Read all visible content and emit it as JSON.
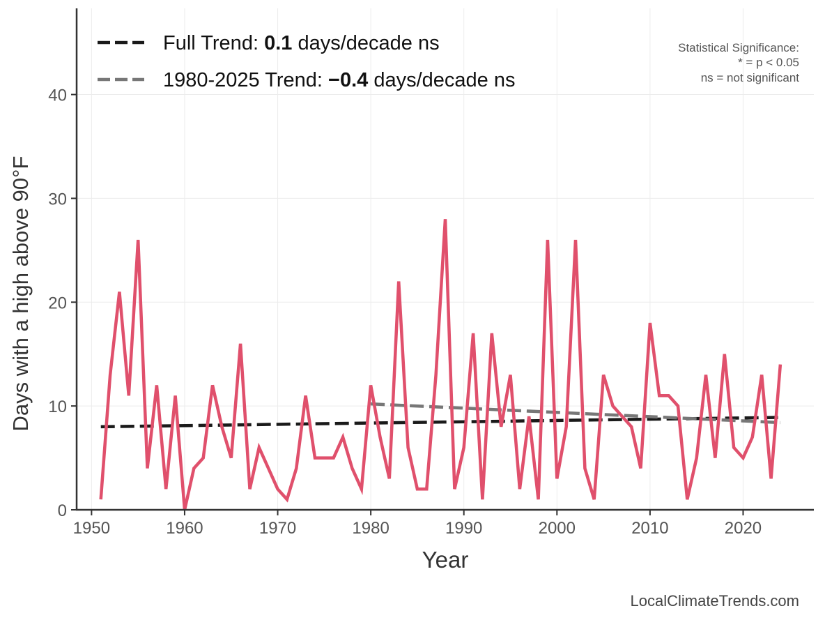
{
  "chart_data": {
    "type": "line",
    "xlabel": "Year",
    "ylabel": "Days with a high above 90°F",
    "xlim": [
      1948.4,
      2027.6
    ],
    "ylim": [
      0,
      48.3
    ],
    "xticks": [
      1950,
      1960,
      1970,
      1980,
      1990,
      2000,
      2010,
      2020
    ],
    "yticks": [
      0,
      10,
      20,
      30,
      40
    ],
    "grid": true,
    "legend_placement": "top-left",
    "series": [
      {
        "color": "#e0506c",
        "x": [
          1951,
          1952,
          1953,
          1954,
          1955,
          1956,
          1957,
          1958,
          1959,
          1960,
          1961,
          1962,
          1963,
          1964,
          1965,
          1966,
          1967,
          1968,
          1969,
          1970,
          1971,
          1972,
          1973,
          1974,
          1975,
          1976,
          1977,
          1978,
          1979,
          1980,
          1981,
          1982,
          1983,
          1984,
          1985,
          1986,
          1987,
          1988,
          1989,
          1990,
          1991,
          1992,
          1993,
          1994,
          1995,
          1996,
          1997,
          1998,
          1999,
          2000,
          2001,
          2002,
          2003,
          2004,
          2005,
          2006,
          2007,
          2008,
          2009,
          2010,
          2011,
          2012,
          2013,
          2014,
          2015,
          2016,
          2017,
          2018,
          2019,
          2020,
          2021,
          2022,
          2023,
          2024
        ],
        "y": [
          1,
          13,
          21,
          11,
          26,
          4,
          12,
          2,
          11,
          0,
          4,
          5,
          12,
          8,
          5,
          16,
          2,
          6,
          4,
          2,
          1,
          4,
          11,
          5,
          5,
          5,
          7,
          4,
          2,
          12,
          7,
          3,
          22,
          6,
          2,
          2,
          13,
          28,
          2,
          6,
          17,
          1,
          17,
          8,
          13,
          2,
          9,
          1,
          26,
          3,
          8,
          26,
          4,
          1,
          13,
          10,
          9,
          8,
          4,
          18,
          11,
          11,
          10,
          1,
          5,
          13,
          5,
          15,
          6,
          5,
          7,
          13,
          3,
          14
        ]
      }
    ],
    "trends": [
      {
        "name_prefix": "Full Trend: ",
        "value": "0.1",
        "name_suffix": " days/decade ns",
        "color": "#1a1a1a",
        "x": [
          1951,
          2024
        ],
        "y": [
          8.0,
          8.9
        ]
      },
      {
        "name_prefix": "1980-2025 Trend: ",
        "value": "−0.4",
        "name_suffix": " days/decade ns",
        "color": "#777777",
        "x": [
          1980,
          2024
        ],
        "y": [
          10.2,
          8.4
        ]
      }
    ],
    "annotations": {
      "significance": [
        "Statistical Significance:",
        "* = p < 0.05",
        "ns = not significant"
      ],
      "credit": "LocalClimateTrends.com"
    }
  }
}
